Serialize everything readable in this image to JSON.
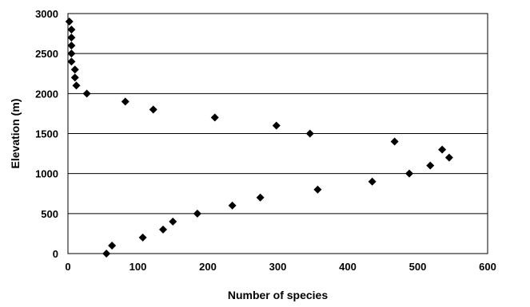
{
  "chart_data": {
    "type": "scatter",
    "title": "",
    "xlabel": "Number of species",
    "ylabel": "Elevation (m)",
    "xlim": [
      0,
      600
    ],
    "ylim": [
      0,
      3000
    ],
    "x_ticks": [
      "0",
      "100",
      "200",
      "300",
      "400",
      "500",
      "600"
    ],
    "y_ticks": [
      "0",
      "500",
      "1000",
      "1500",
      "2000",
      "2500",
      "3000"
    ],
    "grid": "horizontal major gridlines",
    "legend": "none",
    "marker": "diamond",
    "marker_color": "#000000",
    "series": [
      {
        "points": [
          {
            "x": 2,
            "y": 2900
          },
          {
            "x": 5,
            "y": 2800
          },
          {
            "x": 5,
            "y": 2700
          },
          {
            "x": 5,
            "y": 2600
          },
          {
            "x": 5,
            "y": 2500
          },
          {
            "x": 5,
            "y": 2400
          },
          {
            "x": 10,
            "y": 2300
          },
          {
            "x": 10,
            "y": 2200
          },
          {
            "x": 12,
            "y": 2100
          },
          {
            "x": 27,
            "y": 2000
          },
          {
            "x": 82,
            "y": 1900
          },
          {
            "x": 122,
            "y": 1800
          },
          {
            "x": 210,
            "y": 1700
          },
          {
            "x": 298,
            "y": 1600
          },
          {
            "x": 346,
            "y": 1500
          },
          {
            "x": 467,
            "y": 1400
          },
          {
            "x": 535,
            "y": 1300
          },
          {
            "x": 545,
            "y": 1200
          },
          {
            "x": 518,
            "y": 1100
          },
          {
            "x": 488,
            "y": 1000
          },
          {
            "x": 435,
            "y": 900
          },
          {
            "x": 357,
            "y": 800
          },
          {
            "x": 275,
            "y": 700
          },
          {
            "x": 235,
            "y": 600
          },
          {
            "x": 185,
            "y": 500
          },
          {
            "x": 150,
            "y": 400
          },
          {
            "x": 136,
            "y": 300
          },
          {
            "x": 107,
            "y": 200
          },
          {
            "x": 63,
            "y": 100
          },
          {
            "x": 55,
            "y": 0
          }
        ]
      }
    ]
  }
}
